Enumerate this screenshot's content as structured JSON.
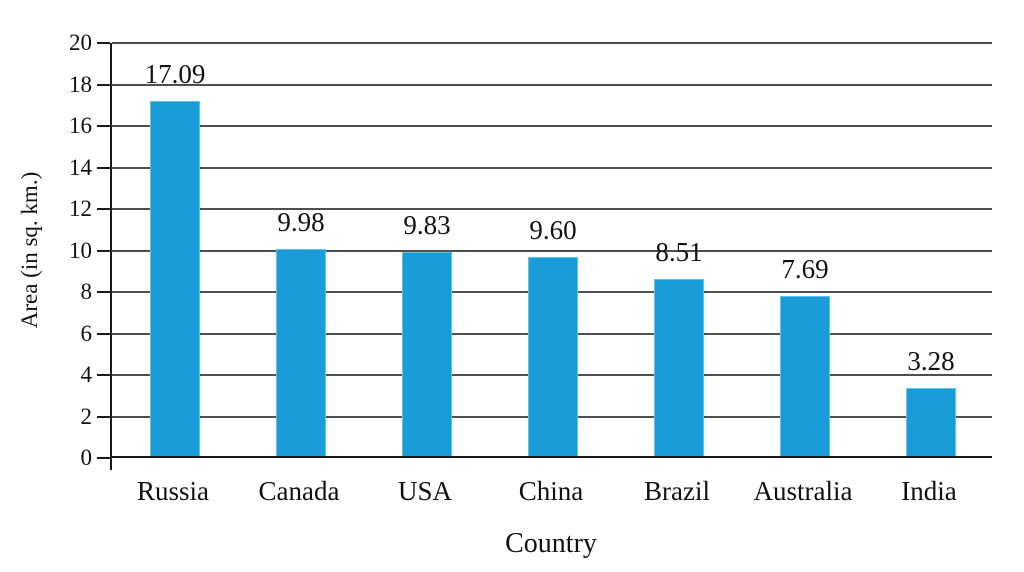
{
  "chart_data": {
    "type": "bar",
    "title": "",
    "xlabel": "Country",
    "ylabel": "Area (in sq. km.)",
    "categories": [
      "Russia",
      "Canada",
      "USA",
      "China",
      "Brazil",
      "Australia",
      "India"
    ],
    "values": [
      17.09,
      9.98,
      9.83,
      9.6,
      8.51,
      7.69,
      3.28
    ],
    "value_labels": [
      "17.09",
      "9.98",
      "9.83",
      "9.60",
      "8.51",
      "7.69",
      "3.28"
    ],
    "ylim": [
      0,
      20
    ],
    "ytick_step": 2,
    "ytick_labels": [
      "0",
      "2",
      "4",
      "6",
      "8",
      "10",
      "12",
      "14",
      "16",
      "18",
      "20"
    ],
    "grid": true,
    "legend": false,
    "colors": {
      "bar_fill": "#1a9cd8",
      "bar_edge": "#5ec4ea",
      "gridline": "#4f4f4f",
      "axis": "#1a1a1a",
      "text": "#111111",
      "background": "#ffffff"
    }
  }
}
